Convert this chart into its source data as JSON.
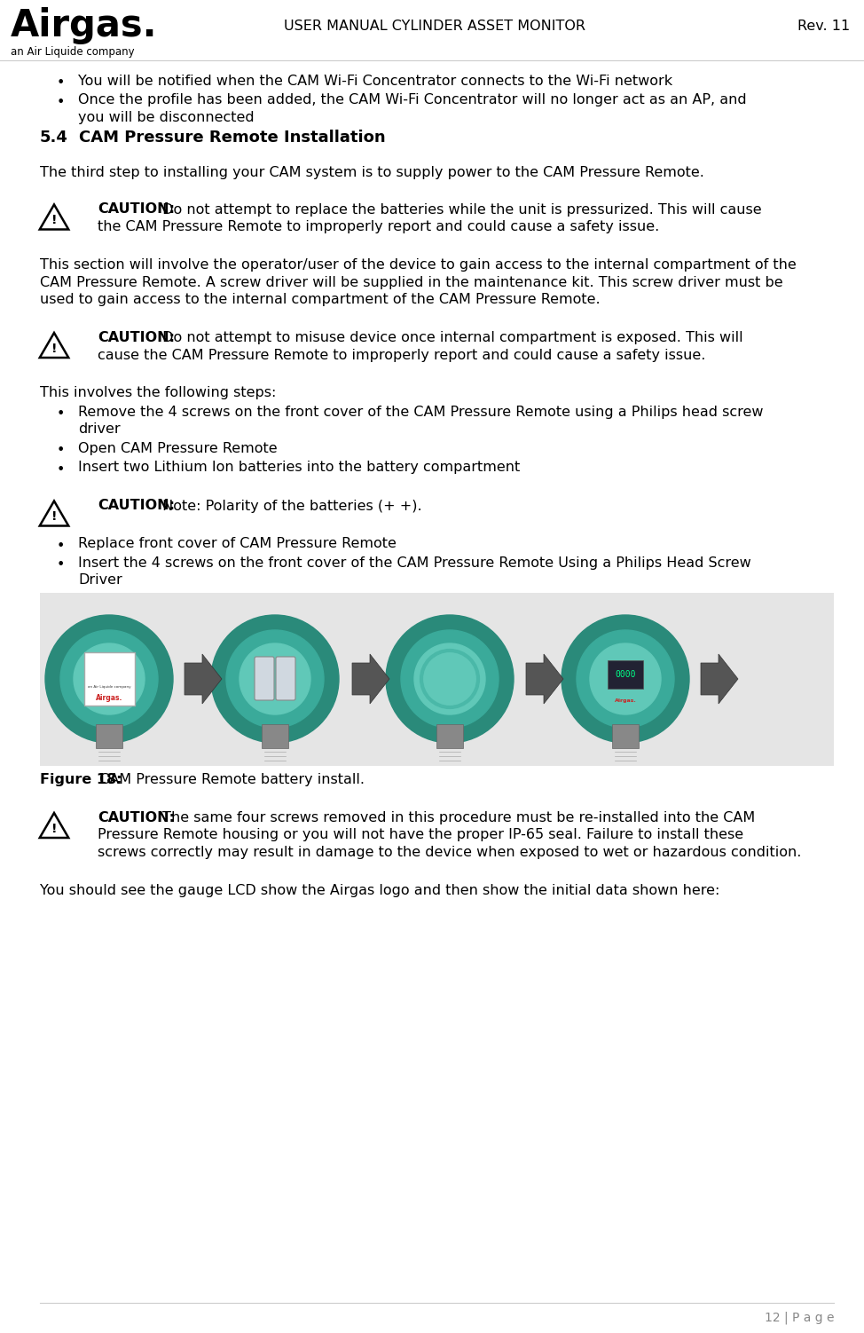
{
  "title": "USER MANUAL CYLINDER ASSET MONITOR",
  "rev": "Rev. 11",
  "page_num": "12 | P a g e",
  "bg_color": "#ffffff",
  "text_color": "#000000",
  "bullet1": "You will be notified when the CAM Wi-Fi Concentrator connects to the Wi-Fi network",
  "bullet2a": "Once the profile has been added, the CAM Wi-Fi Concentrator will no longer act as an AP, and",
  "bullet2b": "you will be disconnected",
  "section_num": "5.4",
  "section_title": "CAM Pressure Remote Installation",
  "para1": "The third step to installing your CAM system is to supply power to the CAM Pressure Remote.",
  "caution1_bold": "CAUTION:",
  "caution1_line1": " Do not attempt to replace the batteries while the unit is pressurized. This will cause",
  "caution1_line2": "the CAM Pressure Remote to improperly report and could cause a safety issue.",
  "para2_line1": "This section will involve the operator/user of the device to gain access to the internal compartment of the",
  "para2_line2": "CAM Pressure Remote. A screw driver will be supplied in the maintenance kit. This screw driver must be",
  "para2_line3": "used to gain access to the internal compartment of the CAM Pressure Remote.",
  "caution2_bold": "CAUTION:",
  "caution2_line1": " Do not attempt to misuse device once internal compartment is exposed. This will",
  "caution2_line2": "cause the CAM Pressure Remote to improperly report and could cause a safety issue.",
  "steps_intro": "This involves the following steps:",
  "step1a": "Remove the 4 screws on the front cover of the CAM Pressure Remote using a Philips head screw",
  "step1b": "driver",
  "step2": "Open CAM Pressure Remote",
  "step3": "Insert two Lithium Ion batteries into the battery compartment",
  "caution3_bold": "CAUTION:",
  "caution3_text": " Note: Polarity of the batteries (+ +).",
  "step4": "Replace front cover of CAM Pressure Remote",
  "step5a": "Insert the 4 screws on the front cover of the CAM Pressure Remote Using a Philips Head Screw",
  "step5b": "Driver",
  "figure_caption_bold": "Figure 18:",
  "figure_caption_text": " CAM Pressure Remote battery install.",
  "caution4_bold": "CAUTION:",
  "caution4_line1": " The same four screws removed in this procedure must be re-installed into the CAM",
  "caution4_line2": "Pressure Remote housing or you will not have the proper IP-65 seal. Failure to install these",
  "caution4_line3": "screws correctly may result in damage to the device when exposed to wet or hazardous condition.",
  "final_para": "You should see the gauge LCD show the Airgas logo and then show the initial data shown here:",
  "gauge_color_outer": "#2a8a7a",
  "gauge_color_mid": "#3aaa9a",
  "gauge_color_inner": "#60c8b8",
  "gauge_bg": "#e8e8e8",
  "arrow_color": "#555555"
}
